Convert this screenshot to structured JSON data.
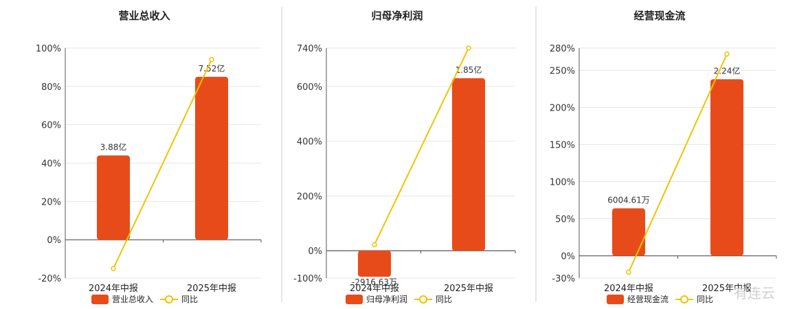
{
  "colors": {
    "bar": "#E84B1A",
    "line": "#F2C200",
    "grid": "#e6e6e6",
    "axis": "#555555",
    "divider": "#cccccc"
  },
  "watermark": "有连云",
  "chart_data": [
    {
      "type": "bar",
      "title": "营业总收入",
      "categories": [
        "2024年中报",
        "2025年中报"
      ],
      "bar_labels": [
        "3.88亿",
        "7.52亿"
      ],
      "bar_values_percent_axis": [
        44,
        85
      ],
      "yoy_percent": [
        -15,
        94
      ],
      "ylim": [
        -20,
        100
      ],
      "yticks": [
        -20,
        0,
        20,
        40,
        60,
        80,
        100
      ],
      "ytick_labels": [
        "-20%",
        "0%",
        "20%",
        "40%",
        "60%",
        "80%",
        "100%"
      ],
      "legend": [
        {
          "label": "营业总收入",
          "icon": "bar-swatch"
        },
        {
          "label": "同比",
          "icon": "line-circle"
        }
      ]
    },
    {
      "type": "bar",
      "title": "归母净利润",
      "categories": [
        "2024年中报",
        "2025年中报"
      ],
      "bar_labels": [
        "-2916.63万",
        "1.85亿"
      ],
      "bar_values_percent_axis": [
        -95,
        630
      ],
      "yoy_percent": [
        22,
        740
      ],
      "ylim": [
        -100,
        740
      ],
      "yticks": [
        -100,
        0,
        200,
        400,
        600,
        740
      ],
      "ytick_labels": [
        "-100%",
        "0%",
        "200%",
        "400%",
        "600%",
        "740%"
      ],
      "legend": [
        {
          "label": "归母净利润",
          "icon": "bar-swatch"
        },
        {
          "label": "同比",
          "icon": "line-circle"
        }
      ]
    },
    {
      "type": "bar",
      "title": "经营现金流",
      "categories": [
        "2024年中报",
        "2025年中报"
      ],
      "bar_labels": [
        "6004.61万",
        "2.24亿"
      ],
      "bar_values_percent_axis": [
        64,
        238
      ],
      "yoy_percent": [
        -22,
        272
      ],
      "ylim": [
        -30,
        280
      ],
      "yticks": [
        -30,
        0,
        50,
        100,
        150,
        200,
        250,
        280
      ],
      "ytick_labels": [
        "-30%",
        "0%",
        "50%",
        "100%",
        "150%",
        "200%",
        "250%",
        "280%"
      ],
      "legend": [
        {
          "label": "经营现金流",
          "icon": "bar-swatch"
        },
        {
          "label": "同比",
          "icon": "line-circle"
        }
      ]
    }
  ]
}
